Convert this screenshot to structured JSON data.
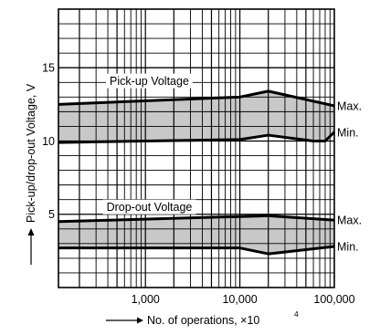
{
  "chart_data": {
    "type": "area",
    "xlabel": "No. of operations, ×10",
    "xlabel_exponent": "4",
    "ylabel": "Pick-up/drop-out Voltage, V",
    "x_scale": "log",
    "xlim": [
      0.12,
      100
    ],
    "ylim": [
      0,
      19
    ],
    "x_ticks": [
      {
        "value": 1,
        "label": "1,000"
      },
      {
        "value": 10,
        "label": "10,000"
      },
      {
        "value": 100,
        "label": "100,000"
      }
    ],
    "y_ticks": [
      {
        "value": 5,
        "label": "5"
      },
      {
        "value": 10,
        "label": "10"
      },
      {
        "value": 15,
        "label": "15"
      }
    ],
    "grid": true,
    "bands": [
      {
        "name": "Pick-up Voltage",
        "fill": "#c8c8c8",
        "upper": {
          "label": "Max.",
          "x": [
            0.12,
            10,
            20,
            100
          ],
          "y": [
            12.5,
            13.0,
            13.4,
            12.4
          ]
        },
        "lower": {
          "label": "Min.",
          "x": [
            0.12,
            10,
            20,
            60,
            80,
            100
          ],
          "y": [
            9.9,
            10.1,
            10.4,
            10.0,
            10.0,
            10.6
          ]
        }
      },
      {
        "name": "Drop-out Voltage",
        "fill": "#c8c8c8",
        "upper": {
          "label": "Max.",
          "x": [
            0.12,
            20,
            100
          ],
          "y": [
            4.5,
            4.9,
            4.6
          ]
        },
        "lower": {
          "label": "Min.",
          "x": [
            0.12,
            10,
            20,
            100
          ],
          "y": [
            2.7,
            2.7,
            2.3,
            2.8
          ]
        }
      }
    ]
  }
}
